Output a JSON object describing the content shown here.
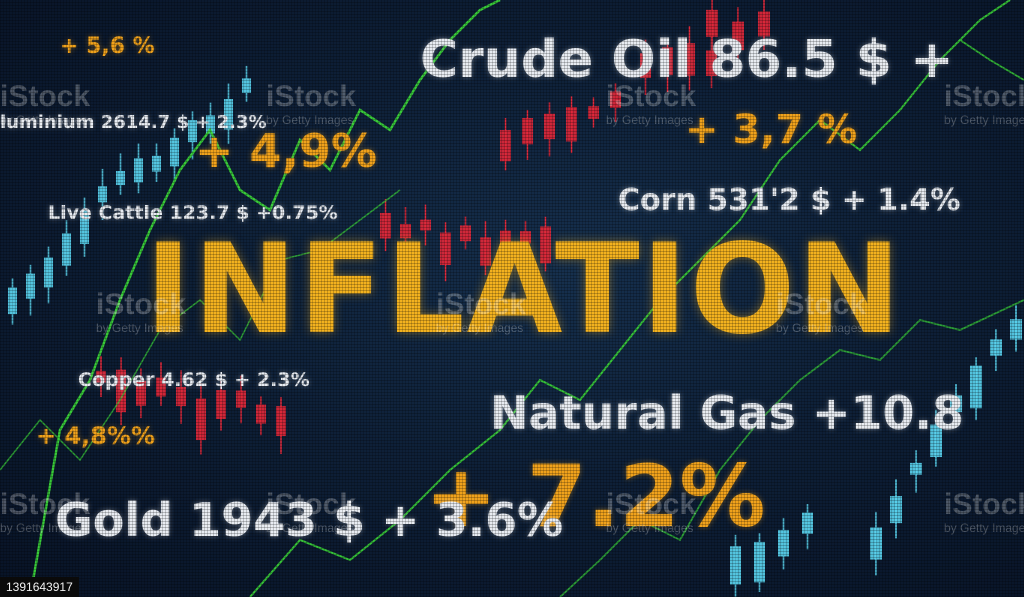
{
  "headline": "INFLATION",
  "tickers": {
    "crude_oil": "Crude Oil 86.5 $ +",
    "crude_change": "+ 3,7 %",
    "aluminium": "luminium 2614.7 $ + 2.3%",
    "alu_change": "+ 4,9%",
    "top_left_change": "+ 5,6 %",
    "live_cattle": "Live Cattle 123.7 $ +0.75%",
    "corn": "Corn 531'2 $ + 1.4%",
    "copper": "Copper 4.62 $ + 2.3%",
    "copper_change": "+ 4,8%%",
    "natural_gas": "Natural Gas +10.8",
    "gas_change": "+ 7.2%",
    "gold": "Gold 1943 $ + 3.6%"
  },
  "watermark": {
    "brand": "iStock",
    "credit": "by Getty Images"
  },
  "stock_id": "1391643917",
  "colors": {
    "background": "#0c1a2e",
    "headline": "#f3b21f",
    "change": "#f0a21c",
    "label": "#e8ecf2",
    "up_candle": "#5ad4f0",
    "down_candle": "#e0283a",
    "trend_line": "#3bd43a"
  }
}
